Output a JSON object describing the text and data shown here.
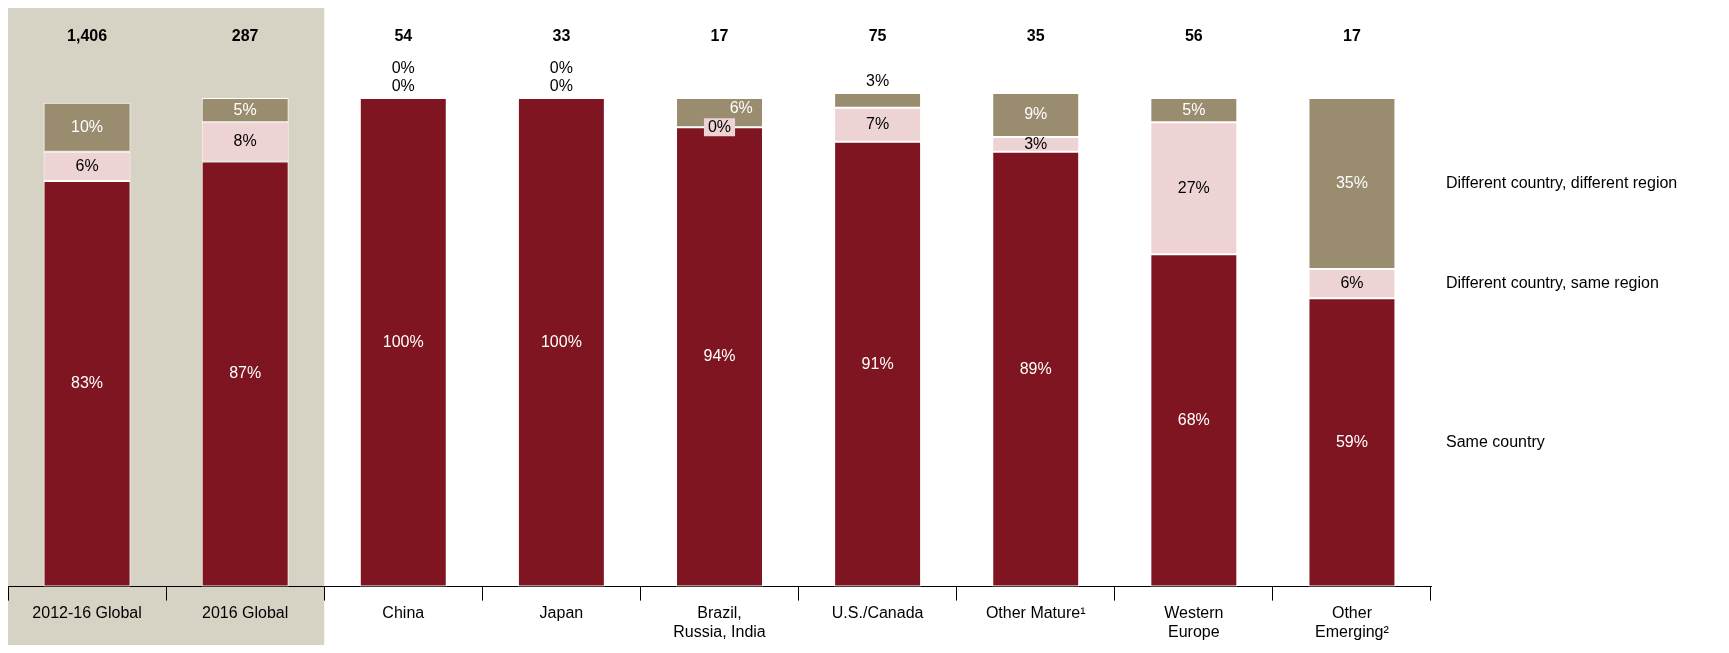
{
  "chart_data": {
    "type": "bar",
    "stacked": true,
    "categories": [
      "2012-16 Global",
      "2016 Global",
      "China",
      "Japan",
      "Brazil,\nRussia, India",
      "U.S./Canada",
      "Other Mature¹",
      "Western\nEurope",
      "Other\nEmerging²"
    ],
    "tick_labels": "x",
    "legend": "right",
    "series": [
      {
        "name": "Same country",
        "color": "#7f1520",
        "values": [
          83,
          87,
          100,
          100,
          94,
          91,
          89,
          68,
          59
        ],
        "value_labels": [
          "83%",
          "87%",
          "100%",
          "100%",
          "94%",
          "91%",
          "89%",
          "68%",
          "59%"
        ]
      },
      {
        "name": "Different country, same region",
        "color": "#eed3d5",
        "values": [
          6,
          8,
          0,
          0,
          0,
          7,
          3,
          27,
          6
        ],
        "value_labels": [
          "6%",
          "8%",
          "0%",
          "0%",
          "0%",
          "7%",
          "3%",
          "27%",
          "6%"
        ]
      },
      {
        "name": "Different country, different region",
        "color": "#9a8c6e",
        "values": [
          10,
          5,
          0,
          0,
          6,
          3,
          9,
          5,
          35
        ],
        "value_labels": [
          "10%",
          "5%",
          "0%",
          "0%",
          "6%",
          "3%",
          "9%",
          "5%",
          "35%"
        ]
      }
    ],
    "annotations": [
      "1,406",
      "287",
      "54",
      "33",
      "17",
      "75",
      "35",
      "56",
      "17"
    ],
    "bands": [
      {
        "axis": "x",
        "from": "2012-16 Global",
        "to": "2016 Global",
        "color": "#d6d2c4"
      }
    ]
  }
}
